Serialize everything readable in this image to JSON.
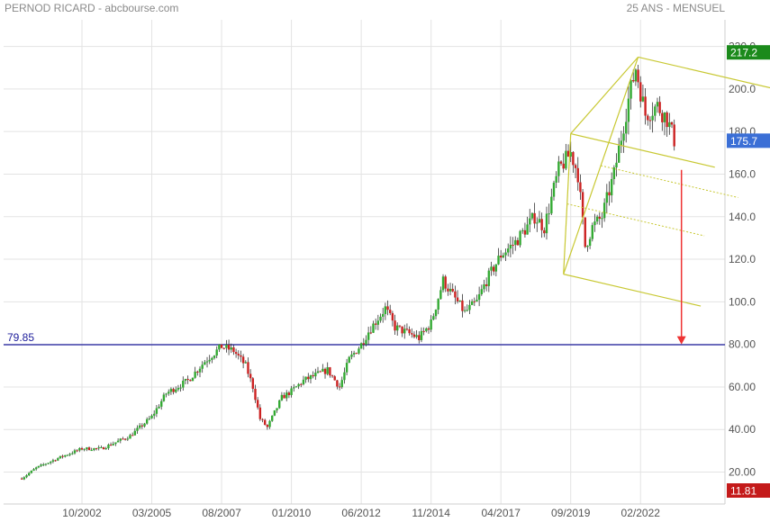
{
  "header": {
    "title": "PERNOD RICARD - abcbourse.com",
    "period": "25 ANS - MENSUEL"
  },
  "colors": {
    "up": "#33aa33",
    "down": "#cc2222",
    "ref_line": "#1a1a9a",
    "fork": "#c8c832",
    "arrow": "#ee3333",
    "badge_high": "#1b8a1b",
    "badge_last": "#3b6fd6",
    "badge_low": "#c41a1a"
  },
  "chart_data": {
    "type": "candlestick",
    "title": "PERNOD RICARD",
    "xlabel": "",
    "ylabel": "",
    "ylim": [
      11,
      225
    ],
    "grid": true,
    "x_ticks": [
      "10/2002",
      "03/2005",
      "08/2007",
      "01/2010",
      "06/2012",
      "11/2014",
      "04/2017",
      "09/2019",
      "02/2022"
    ],
    "y_ticks": [
      "20.00",
      "40.00",
      "60.00",
      "80.00",
      "100.0",
      "120.0",
      "140.0",
      "160.0",
      "180.0",
      "200.0",
      "220.0"
    ],
    "anchors": [
      [
        "2000-09",
        17
      ],
      [
        "2001-03",
        22
      ],
      [
        "2002-01",
        27
      ],
      [
        "2002-10",
        31
      ],
      [
        "2003-06",
        31
      ],
      [
        "2004-06",
        37
      ],
      [
        "2005-03",
        46
      ],
      [
        "2005-09",
        57
      ],
      [
        "2006-06",
        63
      ],
      [
        "2007-01",
        72
      ],
      [
        "2007-08",
        79
      ],
      [
        "2008-01",
        77
      ],
      [
        "2008-06",
        70
      ],
      [
        "2008-09",
        60
      ],
      [
        "2008-12",
        45
      ],
      [
        "2009-03",
        41
      ],
      [
        "2009-09",
        55
      ],
      [
        "2010-01",
        58
      ],
      [
        "2010-06",
        63
      ],
      [
        "2011-04",
        68
      ],
      [
        "2011-09",
        60
      ],
      [
        "2012-01",
        73
      ],
      [
        "2012-06",
        80
      ],
      [
        "2012-09",
        86
      ],
      [
        "2013-04",
        97
      ],
      [
        "2013-08",
        88
      ],
      [
        "2014-06",
        83
      ],
      [
        "2014-11",
        90
      ],
      [
        "2015-04",
        110
      ],
      [
        "2015-08",
        103
      ],
      [
        "2016-01",
        95
      ],
      [
        "2016-06",
        100
      ],
      [
        "2016-10",
        110
      ],
      [
        "2017-04",
        122
      ],
      [
        "2017-10",
        128
      ],
      [
        "2018-06",
        140
      ],
      [
        "2018-10",
        135
      ],
      [
        "2019-04",
        162
      ],
      [
        "2019-09",
        170
      ],
      [
        "2019-12",
        160
      ],
      [
        "2020-03",
        126
      ],
      [
        "2020-06",
        135
      ],
      [
        "2020-10",
        140
      ],
      [
        "2021-03",
        160
      ],
      [
        "2021-09",
        195
      ],
      [
        "2021-12",
        210
      ],
      [
        "2022-04",
        188
      ],
      [
        "2022-09",
        192
      ],
      [
        "2023-01",
        186
      ],
      [
        "2023-04",
        176
      ]
    ],
    "reference_line": {
      "value": 79.85,
      "label": "79.85"
    },
    "pitchfork": {
      "points": [
        [
          "2019-06",
          113
        ],
        [
          "2019-09",
          179
        ],
        [
          "2022-01",
          215
        ]
      ],
      "median_extend_to": [
        "2024-03",
        98
      ]
    },
    "target_arrow": {
      "date": "2023-07",
      "from": 162,
      "to": 80
    },
    "badges": {
      "high": "217.2",
      "last": "175.7",
      "low": "11.81"
    }
  }
}
